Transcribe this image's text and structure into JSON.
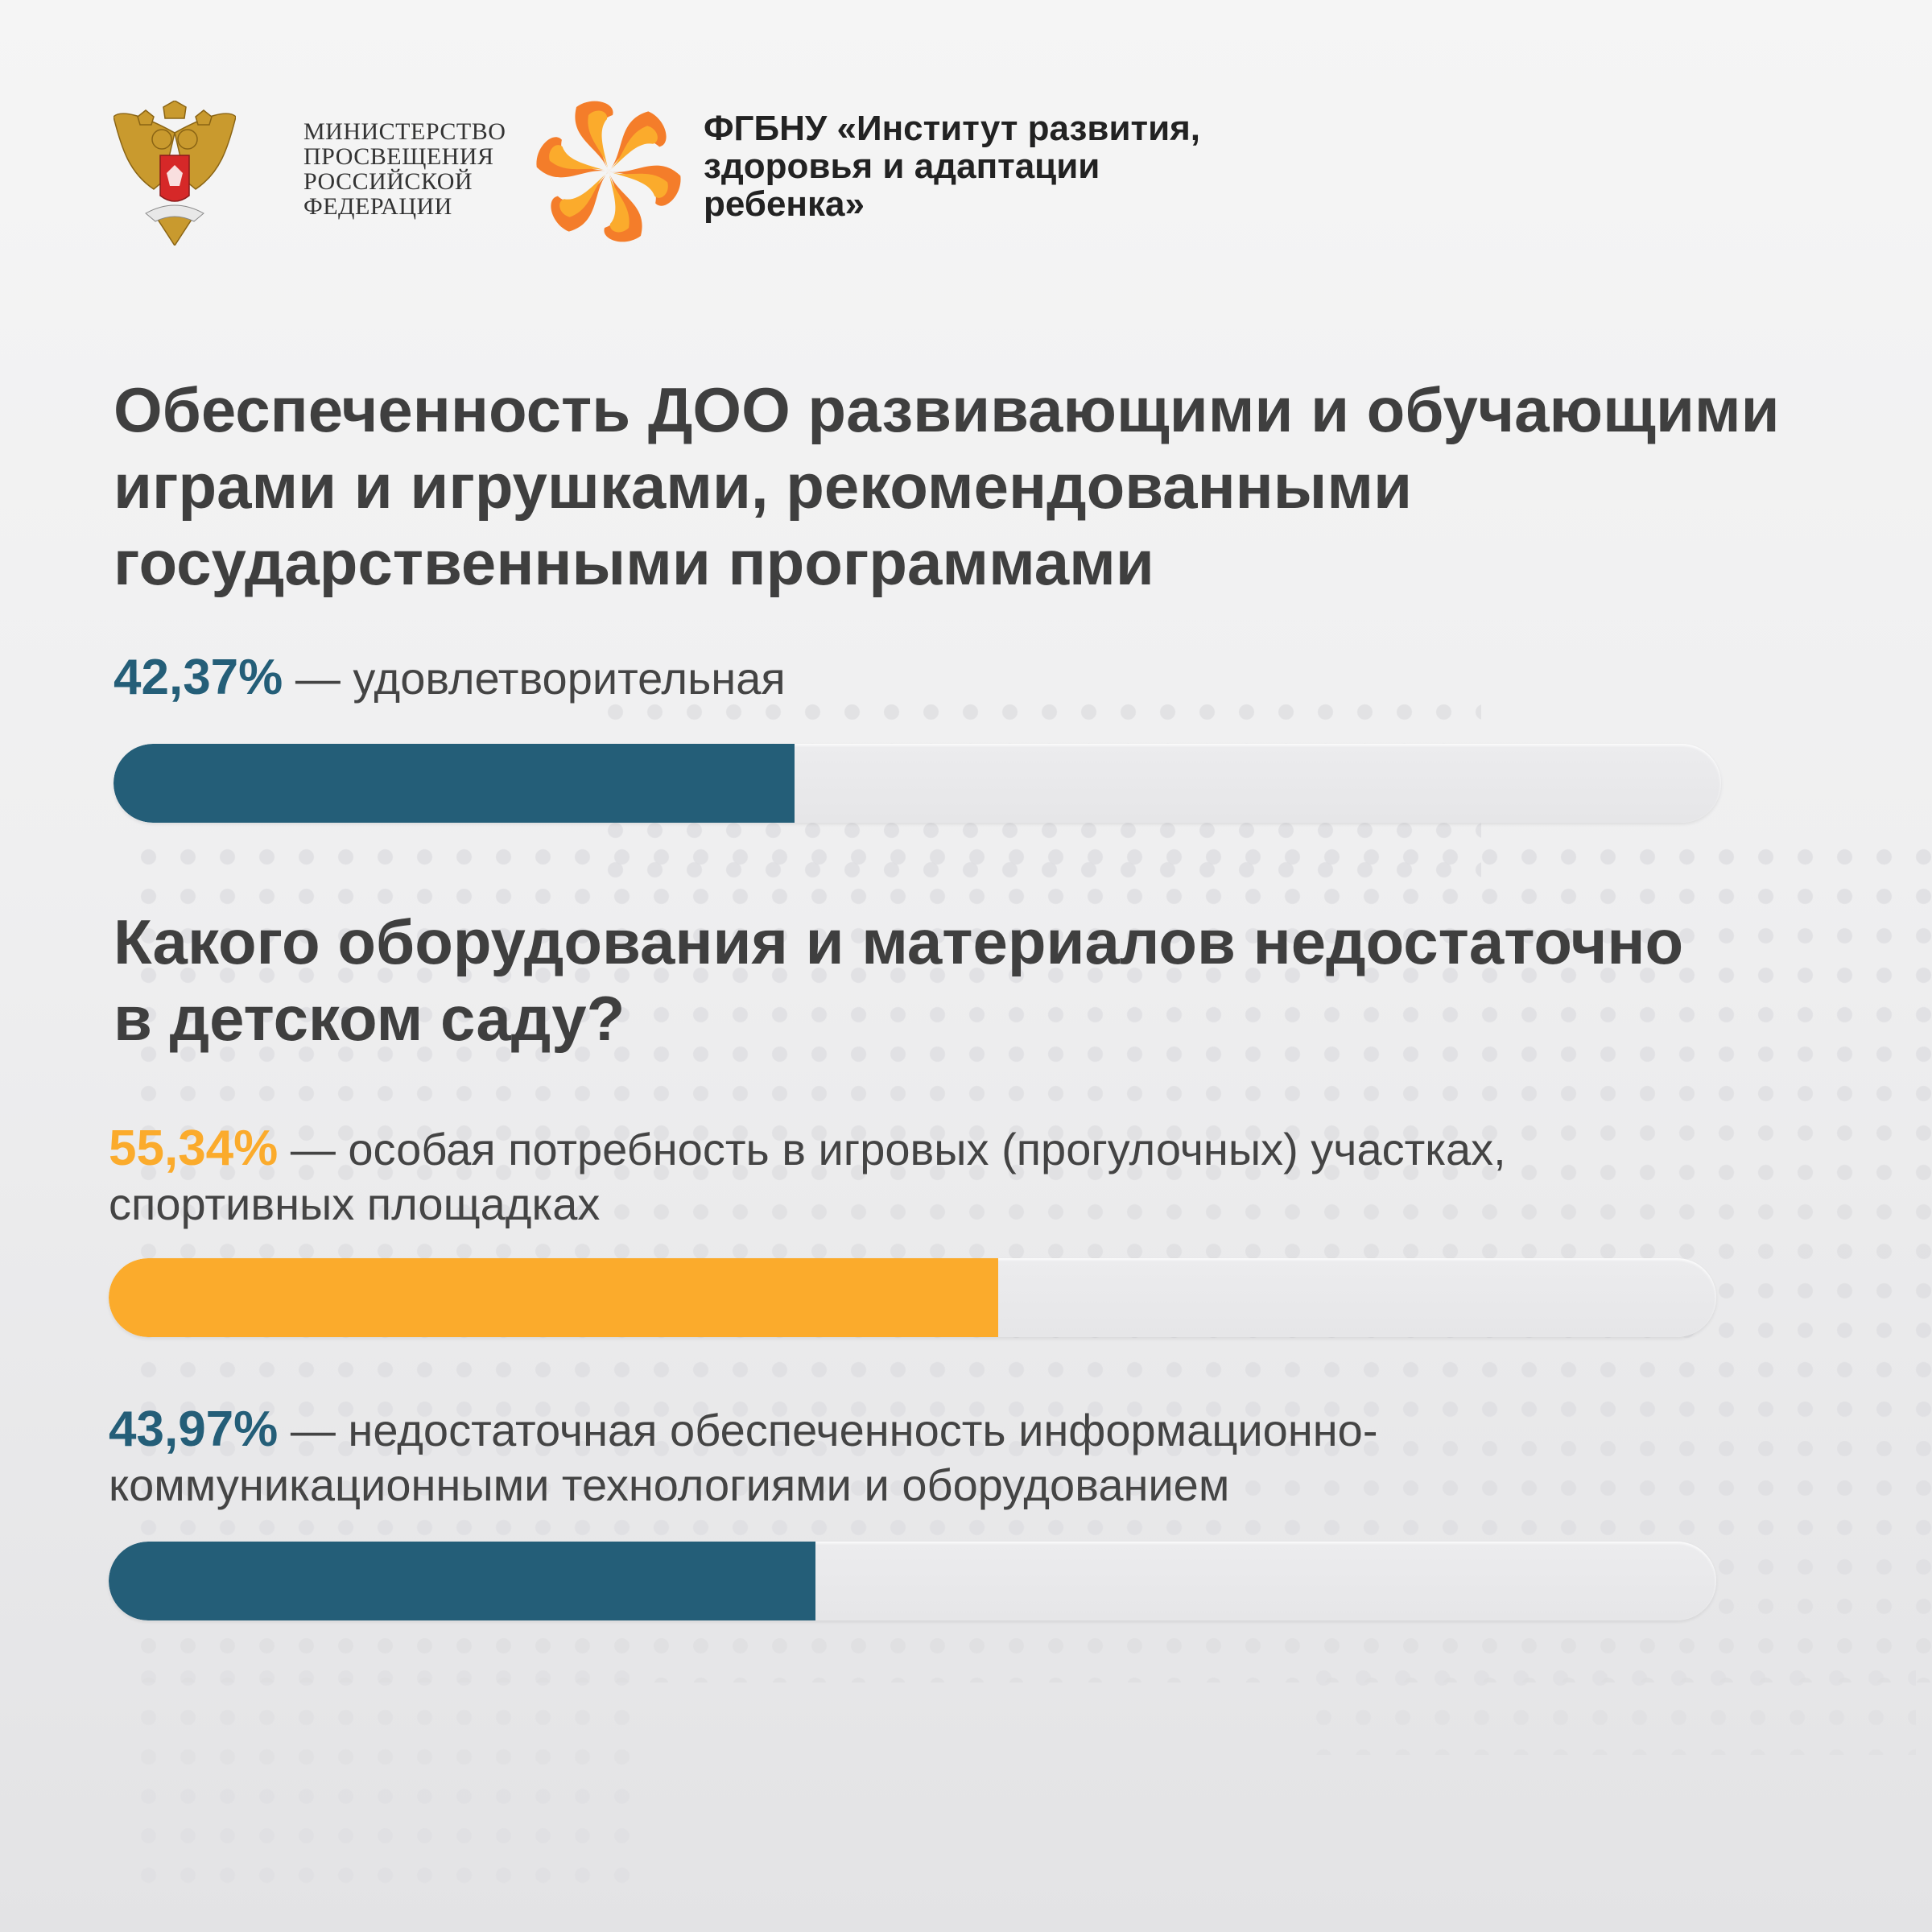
{
  "header": {
    "ministry_lines": [
      "МИНИСТЕРСТВО",
      "ПРОСВЕЩЕНИЯ",
      "РОССИЙСКОЙ",
      "ФЕДЕРАЦИИ"
    ],
    "institute_lines": [
      "ФГБНУ «Институт развития,",
      "здоровья и адаптации",
      "ребенка»"
    ],
    "ministry_icon": "double-headed-eagle-emblem",
    "institute_icon": "orange-swirl-flower-logo"
  },
  "colors": {
    "teal": "#245e78",
    "orange": "#fbab2c",
    "track": "#e9e9eb",
    "text": "#3f3f3f"
  },
  "chart_data": [
    {
      "type": "bar",
      "title": "Обеспеченность ДОО развивающими и обучающими играми и игрушками, рекомендованными государственными программами",
      "title_lines": [
        "Обеспеченность ДОО развивающими и обучающими",
        "играми и игрушками, рекомендованными",
        "государственными программами"
      ],
      "ylim": [
        0,
        100
      ],
      "items": [
        {
          "value_label": "42,37%",
          "value": 42.37,
          "label": "— удовлетворительная",
          "label_lines": [
            "— удовлетворительная"
          ],
          "color": "#245e78"
        }
      ]
    },
    {
      "type": "bar",
      "title": "Какого оборудования и материалов недостаточно в детском саду?",
      "title_lines": [
        "Какого оборудования и материалов недостаточно",
        "в детском саду?"
      ],
      "ylim": [
        0,
        100
      ],
      "items": [
        {
          "value_label": "55,34%",
          "value": 55.34,
          "label": "— особая потребность в игровых (прогулочных) участках, спортивных площадках",
          "label_lines": [
            "— особая потребность в игровых (прогулочных) участках,",
            "спортивных площадках"
          ],
          "color": "#fbab2c"
        },
        {
          "value_label": "43,97%",
          "value": 43.97,
          "label": "— недостаточная обеспеченность информационно-коммуникационными технологиями и оборудованием",
          "label_lines": [
            "— недостаточная обеспеченность информационно-",
            "коммуникационными технологиями и оборудованием"
          ],
          "color": "#245e78"
        }
      ]
    }
  ]
}
